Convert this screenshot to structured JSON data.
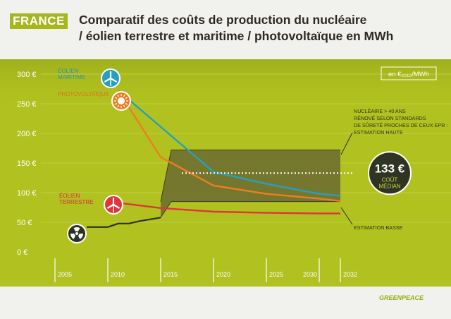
{
  "header": {
    "badge": "FRANCE",
    "title_line1": "Comparatif des coûts de production du nucléaire",
    "title_line2": "/ éolien terrestre et maritime / photovoltaïque en MWh"
  },
  "branding": {
    "logo_text": "GREENPEACE"
  },
  "colors": {
    "panel": "#b1c11f",
    "band": "#6f6f30",
    "eolien_maritime": "#27a0be",
    "photovoltaique": "#ee7e22",
    "eolien_terrestre": "#e0353f",
    "nucleaire": "#2d3324",
    "badge": "#a7b61c",
    "median_circle": "#2f3522"
  },
  "chart_data": {
    "type": "line",
    "unit_label": "en €₂₀₁₀/MWh",
    "x_ticks": [
      "2005",
      "2010",
      "2015",
      "2020",
      "2025",
      "2030",
      "2032"
    ],
    "y_ticks": [
      "0 €",
      "50 €",
      "100 €",
      "150 €",
      "200 €",
      "250 €",
      "300 €"
    ],
    "xlim": [
      2004,
      2034
    ],
    "ylim": [
      -5,
      320
    ],
    "series": [
      {
        "name": "ÉOLIEN MARITIME",
        "color": "#27a0be",
        "icon": "wind-turbine-icon",
        "x": [
          2011,
          2020,
          2025,
          2030,
          2032
        ],
        "y": [
          272,
          135,
          115,
          98,
          95
        ]
      },
      {
        "name": "PHOTOVOLTAÏQUE",
        "color": "#ee7e22",
        "icon": "sun-icon",
        "x": [
          2011,
          2015,
          2020,
          2025,
          2030,
          2032
        ],
        "y": [
          272,
          160,
          112,
          98,
          90,
          86
        ]
      },
      {
        "name": "ÉOLIEN TERRESTRE",
        "color": "#e0353f",
        "icon": "wind-turbine-icon",
        "x": [
          2010,
          2015,
          2020,
          2025,
          2030,
          2032
        ],
        "y": [
          85,
          74,
          68,
          66,
          65,
          65
        ]
      },
      {
        "name": "",
        "color": "#2d3324",
        "icon": "radiation-icon",
        "x": [
          2008,
          2010,
          2011,
          2012,
          2013,
          2014,
          2015
        ],
        "y": [
          42,
          42,
          48,
          48,
          52,
          55,
          58
        ]
      }
    ],
    "band": {
      "x": [
        2015,
        2016,
        2032
      ],
      "high": [
        85,
        172,
        172
      ],
      "low": [
        58,
        85,
        85
      ]
    },
    "median": {
      "y": 133,
      "x_start": 2017,
      "x_end": 2034
    },
    "annotations": {
      "high_estimate_lines": [
        "NUCLÉAIRE > 40 ANS",
        "RÉNOVÉ SELON STANDARDS",
        "DE SÛRETÉ PROCHES DE CEUX EPR :",
        "ESTIMATION HAUTE"
      ],
      "low_estimate": "ESTIMATION BASSE",
      "median_value": "133 €",
      "median_label_1": "COÛT",
      "median_label_2": "MÉDIAN"
    },
    "series_labels": {
      "eolien_maritime_1": "ÉOLIEN",
      "eolien_maritime_2": "MARITIME",
      "photovoltaique": "PHOTOVOLTAÏQUE",
      "eolien_terrestre_1": "ÉOLIEN",
      "eolien_terrestre_2": "TERRESTRE"
    }
  }
}
